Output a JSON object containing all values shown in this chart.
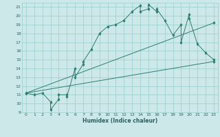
{
  "xlabel": "Humidex (Indice chaleur)",
  "xlim": [
    -0.5,
    23.5
  ],
  "ylim": [
    9,
    21.5
  ],
  "yticks": [
    9,
    10,
    11,
    12,
    13,
    14,
    15,
    16,
    17,
    18,
    19,
    20,
    21
  ],
  "xticks": [
    0,
    1,
    2,
    3,
    4,
    5,
    6,
    7,
    8,
    9,
    10,
    11,
    12,
    13,
    14,
    15,
    16,
    17,
    18,
    19,
    20,
    21,
    22,
    23
  ],
  "bg_color": "#cce8e8",
  "grid_color": "#99cccc",
  "line_color": "#2e7d6e",
  "line1_x": [
    0,
    1,
    2,
    3,
    3,
    4,
    4,
    5,
    5,
    6,
    6,
    7,
    7,
    8,
    9,
    10,
    11,
    12,
    13,
    14,
    14,
    15,
    15,
    16,
    16,
    17,
    18,
    19,
    19,
    20,
    20,
    21,
    22,
    23
  ],
  "line1_y": [
    11.2,
    11.0,
    11.2,
    10.2,
    9.3,
    10.5,
    11.0,
    11.0,
    10.8,
    14.0,
    13.0,
    14.5,
    14.8,
    16.2,
    18.0,
    18.8,
    19.0,
    19.5,
    20.5,
    21.2,
    20.5,
    20.8,
    21.3,
    20.5,
    20.8,
    19.5,
    17.8,
    19.0,
    17.0,
    20.2,
    19.7,
    16.8,
    15.8,
    15.0
  ],
  "line2_x": [
    0,
    23
  ],
  "line2_y": [
    11.2,
    14.8
  ],
  "line3_x": [
    0,
    23
  ],
  "line3_y": [
    11.2,
    19.2
  ]
}
